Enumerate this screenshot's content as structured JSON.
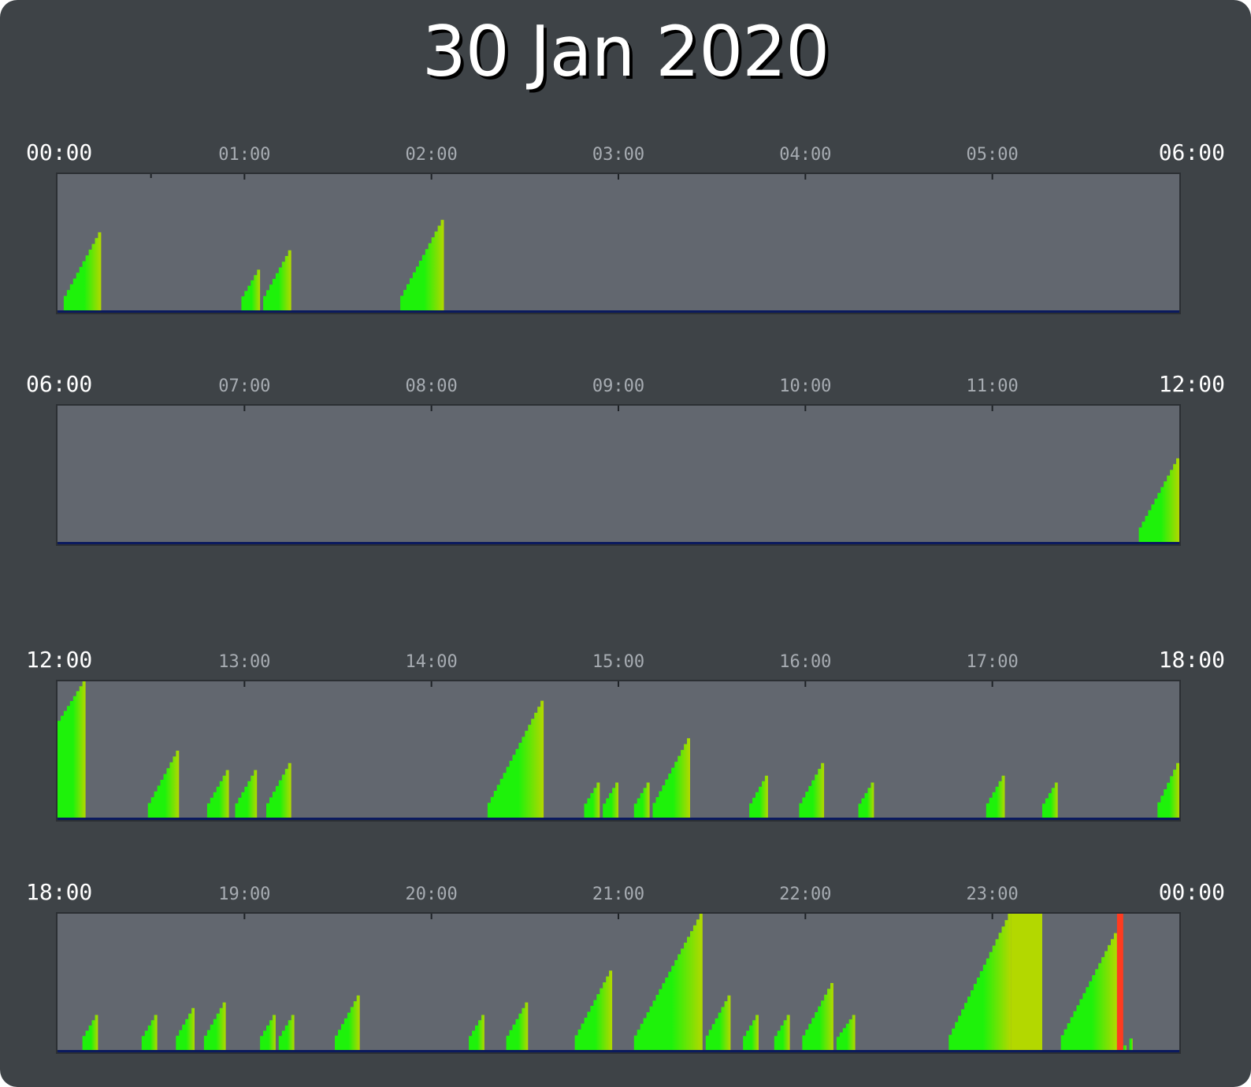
{
  "title": "30 Jan 2020",
  "colors": {
    "page_bg": "#3e4347",
    "plot_bg": "#62676f",
    "baseline": "#0b1a5e",
    "bar_low": "#1ef20a",
    "bar_high": "#b3d800",
    "alert": "#ff3b1f",
    "edge_label": "#ffffff",
    "hour_label": "#a7acb2"
  },
  "chart_data": [
    {
      "type": "area",
      "panel": 1,
      "x_range": [
        "00:00",
        "06:00"
      ],
      "tick_labels": [
        "00:00",
        "01:00",
        "02:00",
        "03:00",
        "04:00",
        "05:00",
        "06:00"
      ],
      "ylim": [
        0,
        1
      ],
      "note_units": "x in minutes after panel start; y as fraction of plot height",
      "ramps": [
        {
          "start": 2,
          "end": 14,
          "y0": 0.08,
          "y1": 0.58
        },
        {
          "start": 59,
          "end": 65,
          "y0": 0.08,
          "y1": 0.31
        },
        {
          "start": 66,
          "end": 75,
          "y0": 0.08,
          "y1": 0.45
        },
        {
          "start": 110,
          "end": 124,
          "y0": 0.08,
          "y1": 0.67
        }
      ],
      "alerts": []
    },
    {
      "type": "area",
      "panel": 2,
      "x_range": [
        "06:00",
        "12:00"
      ],
      "tick_labels": [
        "06:00",
        "07:00",
        "08:00",
        "09:00",
        "10:00",
        "11:00",
        "12:00"
      ],
      "ylim": [
        0,
        1
      ],
      "ramps": [
        {
          "start": 347,
          "end": 360,
          "y0": 0.08,
          "y1": 0.62
        }
      ],
      "alerts": []
    },
    {
      "type": "area",
      "panel": 3,
      "x_range": [
        "12:00",
        "18:00"
      ],
      "tick_labels": [
        "12:00",
        "13:00",
        "14:00",
        "15:00",
        "16:00",
        "17:00",
        "18:00"
      ],
      "ylim": [
        0,
        1
      ],
      "ramps": [
        {
          "start": 0,
          "end": 9,
          "y0": 0.68,
          "y1": 1.0
        },
        {
          "start": 29,
          "end": 39,
          "y0": 0.08,
          "y1": 0.5
        },
        {
          "start": 48,
          "end": 55,
          "y0": 0.08,
          "y1": 0.36
        },
        {
          "start": 57,
          "end": 64,
          "y0": 0.08,
          "y1": 0.36
        },
        {
          "start": 67,
          "end": 75,
          "y0": 0.08,
          "y1": 0.41
        },
        {
          "start": 138,
          "end": 156,
          "y0": 0.08,
          "y1": 0.86
        },
        {
          "start": 169,
          "end": 174,
          "y0": 0.08,
          "y1": 0.27
        },
        {
          "start": 175,
          "end": 180,
          "y0": 0.08,
          "y1": 0.27
        },
        {
          "start": 185,
          "end": 190,
          "y0": 0.08,
          "y1": 0.27
        },
        {
          "start": 191,
          "end": 203,
          "y0": 0.08,
          "y1": 0.59
        },
        {
          "start": 222,
          "end": 228,
          "y0": 0.08,
          "y1": 0.32
        },
        {
          "start": 238,
          "end": 246,
          "y0": 0.08,
          "y1": 0.41
        },
        {
          "start": 257,
          "end": 262,
          "y0": 0.08,
          "y1": 0.27
        },
        {
          "start": 298,
          "end": 304,
          "y0": 0.08,
          "y1": 0.32
        },
        {
          "start": 316,
          "end": 321,
          "y0": 0.08,
          "y1": 0.27
        },
        {
          "start": 353,
          "end": 360,
          "y0": 0.08,
          "y1": 0.41
        }
      ],
      "alerts": []
    },
    {
      "type": "area",
      "panel": 4,
      "x_range": [
        "18:00",
        "00:00"
      ],
      "tick_labels": [
        "18:00",
        "19:00",
        "20:00",
        "21:00",
        "22:00",
        "23:00",
        "00:00"
      ],
      "ylim": [
        0,
        1
      ],
      "ramps": [
        {
          "start": 8,
          "end": 13,
          "y0": 0.08,
          "y1": 0.27
        },
        {
          "start": 27,
          "end": 32,
          "y0": 0.08,
          "y1": 0.27
        },
        {
          "start": 38,
          "end": 44,
          "y0": 0.08,
          "y1": 0.32
        },
        {
          "start": 47,
          "end": 54,
          "y0": 0.08,
          "y1": 0.36
        },
        {
          "start": 65,
          "end": 70,
          "y0": 0.08,
          "y1": 0.27
        },
        {
          "start": 71,
          "end": 76,
          "y0": 0.08,
          "y1": 0.27
        },
        {
          "start": 89,
          "end": 97,
          "y0": 0.08,
          "y1": 0.41
        },
        {
          "start": 132,
          "end": 137,
          "y0": 0.08,
          "y1": 0.27
        },
        {
          "start": 144,
          "end": 151,
          "y0": 0.08,
          "y1": 0.36
        },
        {
          "start": 166,
          "end": 178,
          "y0": 0.08,
          "y1": 0.59
        },
        {
          "start": 185,
          "end": 207,
          "y0": 0.08,
          "y1": 1.0
        },
        {
          "start": 208,
          "end": 216,
          "y0": 0.08,
          "y1": 0.41
        },
        {
          "start": 220,
          "end": 225,
          "y0": 0.08,
          "y1": 0.27
        },
        {
          "start": 230,
          "end": 235,
          "y0": 0.08,
          "y1": 0.27
        },
        {
          "start": 239,
          "end": 249,
          "y0": 0.08,
          "y1": 0.5
        },
        {
          "start": 250,
          "end": 256,
          "y0": 0.08,
          "y1": 0.27
        },
        {
          "start": 286,
          "end": 306,
          "y0": 0.08,
          "y1": 1.0
        },
        {
          "start": 306,
          "end": 316,
          "y0": 1.0,
          "y1": 1.0
        },
        {
          "start": 322,
          "end": 340,
          "y0": 0.08,
          "y1": 0.86
        },
        {
          "start": 342,
          "end": 343,
          "y0": 0.03,
          "y1": 0.05
        },
        {
          "start": 344,
          "end": 345,
          "y0": 0.03,
          "y1": 0.1
        }
      ],
      "alerts": [
        {
          "at": 340,
          "width": 2
        }
      ]
    }
  ]
}
